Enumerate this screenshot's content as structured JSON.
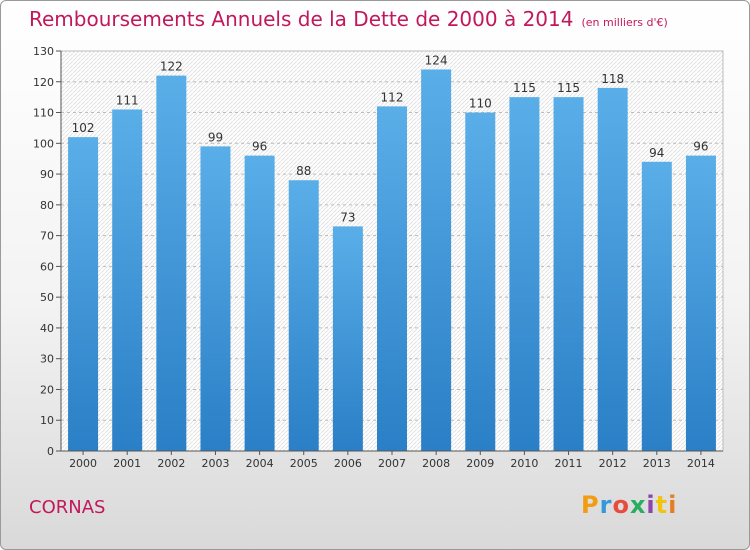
{
  "title": "Remboursements Annuels de la Dette de 2000 à 2014",
  "unit_note": "(en milliers d'€)",
  "city": "CORNAS",
  "brand": {
    "letters": [
      "P",
      "r",
      "o",
      "x",
      "i",
      "t",
      "i"
    ],
    "colors": [
      "#f39c12",
      "#3498db",
      "#e74c3c",
      "#27ae60",
      "#8e44ad",
      "#f1c40f",
      "#e67e22"
    ]
  },
  "chart_data": {
    "type": "bar",
    "categories": [
      "2000",
      "2001",
      "2002",
      "2003",
      "2004",
      "2005",
      "2006",
      "2007",
      "2008",
      "2009",
      "2010",
      "2011",
      "2012",
      "2013",
      "2014"
    ],
    "values": [
      102,
      111,
      122,
      99,
      96,
      88,
      73,
      112,
      124,
      110,
      115,
      115,
      118,
      94,
      96
    ],
    "ylim": [
      0,
      130
    ],
    "yticks": [
      0,
      10,
      20,
      30,
      40,
      50,
      60,
      70,
      80,
      90,
      100,
      110,
      120,
      130
    ],
    "grid": true,
    "bar_color_top": "#5aaee8",
    "bar_color_bottom": "#2a7fc6",
    "xlabel": "",
    "ylabel": ""
  }
}
